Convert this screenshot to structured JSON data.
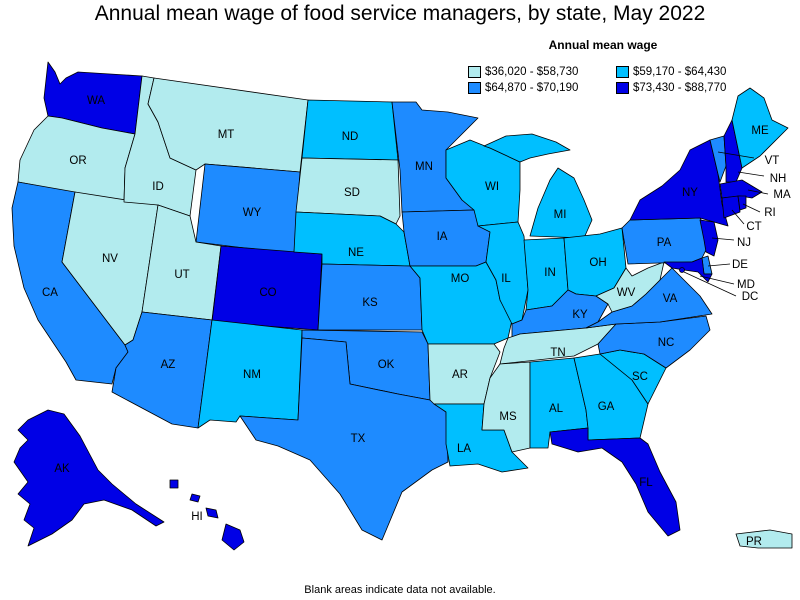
{
  "title": "Annual mean wage of food service managers, by state, May 2022",
  "legend": {
    "title": "Annual mean wage",
    "items": [
      {
        "key": "c1",
        "label": "$36,020 - $58,730",
        "color": "#b2ebee"
      },
      {
        "key": "c3",
        "label": "$59,170 - $64,430",
        "color": "#00bfff"
      },
      {
        "key": "c2",
        "label": "$64,870 - $70,190",
        "color": "#1e8bff"
      },
      {
        "key": "c4",
        "label": "$73,430 - $88,770",
        "color": "#0000e6"
      }
    ]
  },
  "states": {
    "WA": "c4",
    "OR": "c1",
    "CA": "c2",
    "NV": "c1",
    "ID": "c1",
    "MT": "c1",
    "WY": "c2",
    "UT": "c1",
    "AZ": "c2",
    "CO": "c4",
    "NM": "c3",
    "ND": "c3",
    "SD": "c1",
    "NE": "c3",
    "KS": "c2",
    "OK": "c2",
    "TX": "c2",
    "MN": "c2",
    "IA": "c2",
    "MO": "c3",
    "AR": "c1",
    "LA": "c3",
    "WI": "c3",
    "IL": "c3",
    "MI": "c3",
    "IN": "c3",
    "OH": "c3",
    "KY": "c2",
    "TN": "c1",
    "MS": "c1",
    "AL": "c3",
    "GA": "c3",
    "FL": "c4",
    "SC": "c3",
    "NC": "c2",
    "VA": "c2",
    "WV": "c1",
    "PA": "c2",
    "NY": "c4",
    "VT": "c2",
    "NH": "c4",
    "ME": "c3",
    "MA": "c4",
    "RI": "c4",
    "CT": "c4",
    "NJ": "c4",
    "DE": "c2",
    "MD": "c4",
    "DC": "c4",
    "AK": "c4",
    "HI": "c4",
    "PR": "c1"
  },
  "labels": {
    "WA": "WA",
    "OR": "OR",
    "CA": "CA",
    "NV": "NV",
    "ID": "ID",
    "MT": "MT",
    "WY": "WY",
    "UT": "UT",
    "AZ": "AZ",
    "CO": "CO",
    "NM": "NM",
    "ND": "ND",
    "SD": "SD",
    "NE": "NE",
    "KS": "KS",
    "OK": "OK",
    "TX": "TX",
    "MN": "MN",
    "IA": "IA",
    "MO": "MO",
    "AR": "AR",
    "LA": "LA",
    "WI": "WI",
    "IL": "IL",
    "MI": "MI",
    "IN": "IN",
    "OH": "OH",
    "KY": "KY",
    "TN": "TN",
    "MS": "MS",
    "AL": "AL",
    "GA": "GA",
    "FL": "FL",
    "SC": "SC",
    "NC": "NC",
    "VA": "VA",
    "WV": "WV",
    "PA": "PA",
    "NY": "NY",
    "VT": "VT",
    "NH": "NH",
    "ME": "ME",
    "MA": "MA",
    "RI": "RI",
    "CT": "CT",
    "NJ": "NJ",
    "DE": "DE",
    "MD": "MD",
    "DC": "DC",
    "AK": "AK",
    "HI": "HI",
    "PR": "PR"
  },
  "footnote": "Blank areas indicate data not available."
}
